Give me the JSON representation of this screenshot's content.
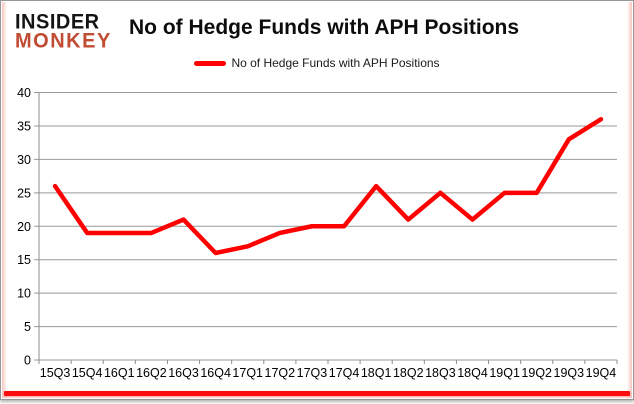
{
  "logo": {
    "line1": "INSIDER",
    "line2": "MONKEY"
  },
  "header": {
    "title": "No of Hedge Funds with APH Positions"
  },
  "legend": {
    "label": "No of Hedge Funds with APH Positions",
    "swatch_color": "#fe0000"
  },
  "chart_data": {
    "type": "line",
    "title": "No of Hedge Funds with APH Positions",
    "categories": [
      "15Q3",
      "15Q4",
      "16Q1",
      "16Q2",
      "16Q3",
      "16Q4",
      "17Q1",
      "17Q2",
      "17Q3",
      "17Q4",
      "18Q1",
      "18Q2",
      "18Q3",
      "18Q4",
      "19Q1",
      "19Q2",
      "19Q3",
      "19Q4"
    ],
    "series": [
      {
        "name": "No of Hedge Funds with APH Positions",
        "values": [
          26,
          19,
          19,
          19,
          21,
          16,
          17,
          19,
          20,
          20,
          26,
          21,
          25,
          21,
          25,
          25,
          33,
          36
        ]
      }
    ],
    "ylim": [
      0,
      40
    ],
    "yticks": [
      0,
      5,
      10,
      15,
      20,
      25,
      30,
      35,
      40
    ],
    "xlabel": "",
    "ylabel": "",
    "grid": true,
    "legend_position": "top",
    "line_color": "#ff0000",
    "grid_color": "#999999",
    "axis_color": "#8c8c8c"
  },
  "colors": {
    "logo_red": "#c14b33",
    "accent_red": "#ff0000",
    "border_gray": "#969696"
  }
}
